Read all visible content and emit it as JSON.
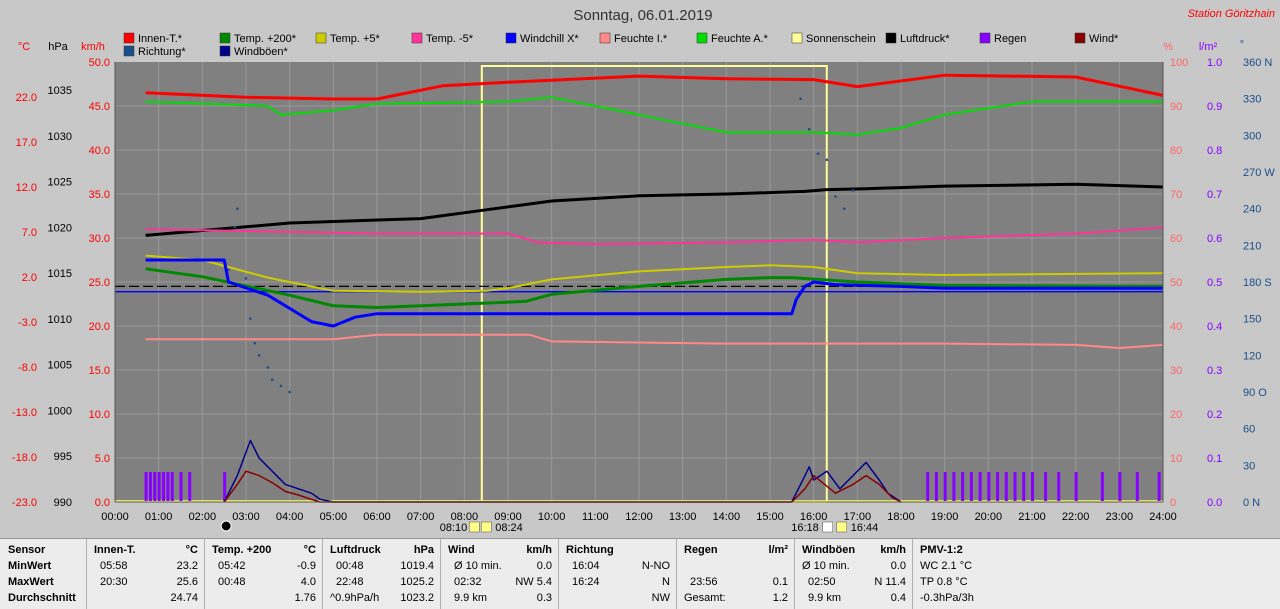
{
  "title": "Sonntag, 06.01.2019",
  "station": "Station Göritzhain",
  "legend": [
    {
      "label": "Innen-T.*",
      "color": "#ff0000"
    },
    {
      "label": "Temp. +200*",
      "color": "#008800"
    },
    {
      "label": "Temp. +5*",
      "color": "#cccc00"
    },
    {
      "label": "Temp. -5*",
      "color": "#ff3399"
    },
    {
      "label": "Windchill X*",
      "color": "#0000ff"
    },
    {
      "label": "Feuchte I.*",
      "color": "#ff8888"
    },
    {
      "label": "Feuchte A.*",
      "color": "#00dd00"
    },
    {
      "label": "Sonnenschein",
      "color": "#ffff99"
    },
    {
      "label": "Luftdruck*",
      "color": "#000000"
    },
    {
      "label": "Regen",
      "color": "#8800ff"
    },
    {
      "label": "Wind*",
      "color": "#880000"
    },
    {
      "label": "Richtung*",
      "color": "#1a4e8a"
    },
    {
      "label": "Windböen*",
      "color": "#000088"
    }
  ],
  "axis_units": {
    "degc": "°C",
    "hpa": "hPa",
    "kmh": "km/h",
    "pct": "%",
    "lm2": "l/m²",
    "deg": "°"
  },
  "chart_data": {
    "type": "line",
    "x_range": [
      0,
      24
    ],
    "x_tick_labels": [
      "00:00",
      "01:00",
      "02:00",
      "03:00",
      "04:00",
      "05:00",
      "06:00",
      "07:00",
      "08:00",
      "09:00",
      "10:00",
      "11:00",
      "12:00",
      "13:00",
      "14:00",
      "15:00",
      "16:00",
      "17:00",
      "18:00",
      "19:00",
      "20:00",
      "21:00",
      "22:00",
      "23:00",
      "24:00"
    ],
    "axes": {
      "temp": {
        "ticks": [
          "22.0",
          "17.0",
          "12.0",
          "7.0",
          "2.0",
          "-3.0",
          "-8.0",
          "-13.0",
          "-18.0",
          "-23.0"
        ],
        "range": [
          -23,
          27
        ]
      },
      "hpa": {
        "ticks": [
          "1035",
          "1030",
          "1025",
          "1020",
          "1015",
          "1010",
          "1005",
          "1000",
          "995",
          "990"
        ],
        "range": [
          990,
          1040
        ]
      },
      "kmh": {
        "ticks": [
          "50.0",
          "45.0",
          "40.0",
          "35.0",
          "30.0",
          "25.0",
          "20.0",
          "15.0",
          "10.0",
          "5.0",
          "0.0"
        ],
        "range": [
          0,
          50
        ]
      },
      "pct": {
        "ticks": [
          "100",
          "90",
          "80",
          "70",
          "60",
          "50",
          "40",
          "30",
          "20",
          "10",
          "0"
        ],
        "range": [
          0,
          100
        ]
      },
      "lm2": {
        "ticks": [
          "1.0",
          "0.9",
          "0.8",
          "0.7",
          "0.6",
          "0.5",
          "0.4",
          "0.3",
          "0.2",
          "0.1",
          "0.0"
        ],
        "range": [
          0,
          1
        ]
      },
      "dir": {
        "ticks": [
          "360 N",
          "330",
          "300",
          "270 W",
          "240",
          "210",
          "180 S",
          "150",
          "120",
          "90 O",
          "60",
          "30",
          "0 N"
        ],
        "range": [
          0,
          360
        ]
      }
    },
    "sun": {
      "rise": "08:10",
      "noon": "08:24",
      "set": "16:18",
      "set2": "16:44",
      "period": [
        8.4,
        16.3
      ]
    },
    "series": [
      {
        "name": "Innen-T.*",
        "axis": "temp",
        "color": "#ff0000",
        "width": 3,
        "points": [
          [
            0.7,
            23.5
          ],
          [
            3,
            23
          ],
          [
            5,
            22.8
          ],
          [
            6,
            22.8
          ],
          [
            7.5,
            24.3
          ],
          [
            9,
            24.7
          ],
          [
            12,
            25.4
          ],
          [
            14,
            25.1
          ],
          [
            16,
            25
          ],
          [
            17,
            24.2
          ],
          [
            19,
            25.5
          ],
          [
            22,
            25.3
          ],
          [
            24,
            23.2
          ]
        ]
      },
      {
        "name": "Feuchte A.*",
        "axis": "pct",
        "color": "#00dd00",
        "width": 2,
        "points": [
          [
            0.7,
            91
          ],
          [
            3.5,
            90
          ],
          [
            3.8,
            88
          ],
          [
            5,
            89
          ],
          [
            6,
            90.5
          ],
          [
            9,
            91
          ],
          [
            10,
            92
          ],
          [
            12,
            88
          ],
          [
            14,
            84
          ],
          [
            16,
            84
          ],
          [
            17,
            83.5
          ],
          [
            18,
            85
          ],
          [
            19,
            88
          ],
          [
            21,
            91
          ],
          [
            24,
            91
          ]
        ]
      },
      {
        "name": "Luftdruck*",
        "axis": "hpa",
        "color": "#000000",
        "width": 3,
        "points": [
          [
            0.7,
            1020.3
          ],
          [
            4,
            1021.7
          ],
          [
            7,
            1022.2
          ],
          [
            8.5,
            1023.2
          ],
          [
            10,
            1024.2
          ],
          [
            12,
            1024.8
          ],
          [
            14,
            1025
          ],
          [
            15.8,
            1025.3
          ],
          [
            16.3,
            1025.5
          ],
          [
            17.2,
            1025.6
          ],
          [
            19,
            1025.9
          ],
          [
            22,
            1026.1
          ],
          [
            24,
            1025.8
          ]
        ]
      },
      {
        "name": "Temp. -5*",
        "axis": "temp",
        "color": "#ff3399",
        "width": 2,
        "points": [
          [
            0.7,
            8
          ],
          [
            3,
            7.8
          ],
          [
            6,
            7.5
          ],
          [
            9,
            7.5
          ],
          [
            9.7,
            6.5
          ],
          [
            11,
            6.3
          ],
          [
            14,
            6.5
          ],
          [
            16,
            6.8
          ],
          [
            17,
            6.5
          ],
          [
            19,
            7
          ],
          [
            22,
            7.5
          ],
          [
            24,
            8.2
          ]
        ]
      },
      {
        "name": "Temp. +5*",
        "axis": "temp",
        "color": "#cccc00",
        "width": 2,
        "points": [
          [
            0.7,
            5
          ],
          [
            2,
            4.5
          ],
          [
            3.5,
            2.5
          ],
          [
            5,
            1
          ],
          [
            7,
            0.9
          ],
          [
            8.5,
            1
          ],
          [
            9,
            1.3
          ],
          [
            10,
            2.3
          ],
          [
            12,
            3.2
          ],
          [
            14,
            3.7
          ],
          [
            15,
            3.9
          ],
          [
            16,
            3.7
          ],
          [
            17,
            3
          ],
          [
            19,
            2.8
          ],
          [
            24,
            3
          ]
        ]
      },
      {
        "name": "Temp. +200*",
        "axis": "temp",
        "color": "#008800",
        "width": 3,
        "points": [
          [
            0.7,
            3.5
          ],
          [
            2,
            2.6
          ],
          [
            4,
            0.5
          ],
          [
            5,
            -0.7
          ],
          [
            6,
            -0.9
          ],
          [
            8,
            -0.5
          ],
          [
            9.4,
            -0.2
          ],
          [
            10,
            0.6
          ],
          [
            12,
            1.5
          ],
          [
            14,
            2.3
          ],
          [
            15,
            2.5
          ],
          [
            15.5,
            2.5
          ],
          [
            17,
            2
          ],
          [
            19,
            1.6
          ],
          [
            24,
            1.5
          ]
        ]
      },
      {
        "name": "Windchill X*",
        "axis": "temp",
        "color": "#0000ff",
        "width": 3,
        "points": [
          [
            0.7,
            4.5
          ],
          [
            2.5,
            4.5
          ],
          [
            2.6,
            2
          ],
          [
            3.5,
            0.5
          ],
          [
            4,
            -1
          ],
          [
            4.5,
            -2.5
          ],
          [
            5,
            -3
          ],
          [
            5.5,
            -2
          ],
          [
            6,
            -1.6
          ],
          [
            8,
            -1.6
          ],
          [
            10,
            -1.6
          ],
          [
            12,
            -1.6
          ],
          [
            14,
            -1.6
          ],
          [
            15.5,
            -1.6
          ],
          [
            15.6,
            0
          ],
          [
            15.8,
            1.5
          ],
          [
            16,
            2
          ],
          [
            16.5,
            1.7
          ],
          [
            18,
            1.5
          ],
          [
            19,
            1.3
          ],
          [
            24,
            1.3
          ]
        ]
      },
      {
        "name": "Feuchte I.*",
        "axis": "pct",
        "color": "#ff8888",
        "width": 2,
        "points": [
          [
            0.7,
            37
          ],
          [
            5,
            37
          ],
          [
            6,
            38
          ],
          [
            9.5,
            38
          ],
          [
            10,
            36.5
          ],
          [
            14,
            36
          ],
          [
            19,
            36
          ],
          [
            22,
            35.7
          ],
          [
            23,
            35
          ],
          [
            24,
            35.7
          ]
        ]
      },
      {
        "name": "Windböen*",
        "axis": "kmh",
        "color": "#000088",
        "width": 1.5,
        "points": [
          [
            2.5,
            0
          ],
          [
            2.8,
            3
          ],
          [
            3.1,
            7
          ],
          [
            3.3,
            5
          ],
          [
            3.6,
            3.5
          ],
          [
            3.9,
            2
          ],
          [
            4.2,
            1.5
          ],
          [
            4.5,
            1
          ],
          [
            4.7,
            0.3
          ],
          [
            5,
            0
          ],
          [
            15.5,
            0
          ],
          [
            15.7,
            2
          ],
          [
            15.9,
            4
          ],
          [
            16,
            2.5
          ],
          [
            16.3,
            3.5
          ],
          [
            16.6,
            1.5
          ],
          [
            16.9,
            3
          ],
          [
            17.2,
            4.5
          ],
          [
            17.5,
            2.5
          ],
          [
            17.7,
            1
          ],
          [
            18,
            0
          ]
        ]
      },
      {
        "name": "Wind*",
        "axis": "kmh",
        "color": "#880000",
        "width": 1.5,
        "points": [
          [
            2.5,
            0
          ],
          [
            2.8,
            2
          ],
          [
            3,
            3.5
          ],
          [
            3.3,
            3
          ],
          [
            3.6,
            2.2
          ],
          [
            3.9,
            1.2
          ],
          [
            4.2,
            0.8
          ],
          [
            4.5,
            0.3
          ],
          [
            4.7,
            0
          ],
          [
            15.5,
            0
          ],
          [
            15.8,
            1.5
          ],
          [
            16,
            3
          ],
          [
            16.2,
            2.2
          ],
          [
            16.5,
            1
          ],
          [
            16.9,
            2
          ],
          [
            17.2,
            3
          ],
          [
            17.5,
            2
          ],
          [
            17.8,
            0.5
          ],
          [
            18,
            0
          ]
        ]
      }
    ],
    "baselines": [
      {
        "name": "Windchill ref",
        "axis": "temp",
        "color": "#0000ff",
        "value": 0.9
      },
      {
        "name": "Dash ref",
        "axis": "temp",
        "color": "#000000",
        "value": 1.5,
        "dashed": true
      }
    ],
    "richtung_points": [
      [
        2.6,
        190
      ],
      [
        2.75,
        225
      ],
      [
        2.8,
        240
      ],
      [
        3,
        183
      ],
      [
        3.1,
        150
      ],
      [
        3.2,
        130
      ],
      [
        3.3,
        120
      ],
      [
        3.5,
        110
      ],
      [
        3.6,
        100
      ],
      [
        3.8,
        95
      ],
      [
        4,
        90
      ],
      [
        15.7,
        330
      ],
      [
        15.9,
        305
      ],
      [
        16.1,
        285
      ],
      [
        16.3,
        280
      ],
      [
        16.5,
        250
      ],
      [
        16.7,
        240
      ],
      [
        16.9,
        255
      ]
    ],
    "regen_bars": [
      0.7,
      0.8,
      0.9,
      1.0,
      1.1,
      1.2,
      1.3,
      1.5,
      1.7,
      2.5,
      18.6,
      18.8,
      19.0,
      19.2,
      19.4,
      19.6,
      19.8,
      20.0,
      20.2,
      20.4,
      20.6,
      20.8,
      21.0,
      21.3,
      21.6,
      22.0,
      22.6,
      23.0,
      23.4,
      23.9
    ]
  },
  "stats": {
    "sensor": {
      "header": "Sensor",
      "min": "MinWert",
      "max": "MaxWert",
      "avg": "Durchschnitt"
    },
    "innen": {
      "header": "Innen-T.",
      "unit": "°C",
      "min_t": "05:58",
      "min_v": "23.2",
      "max_t": "20:30",
      "max_v": "25.6",
      "avg_v": "24.74"
    },
    "temp200": {
      "header": "Temp. +200",
      "unit": "°C",
      "min_t": "05:42",
      "min_v": "-0.9",
      "max_t": "00:48",
      "max_v": "4.0",
      "avg_v": "1.76"
    },
    "luftdruck": {
      "header": "Luftdruck",
      "unit": "hPa",
      "min_t": "00:48",
      "min_v": "1019.4",
      "max_t": "22:48",
      "max_v": "1025.2",
      "avg_t": "^0.9hPa/h",
      "avg_v": "1023.2"
    },
    "wind": {
      "header": "Wind",
      "unit": "km/h",
      "min_t": "Ø 10 min.",
      "min_v": "0.0",
      "max_t": "02:32",
      "max_v": "NW 5.4",
      "avg_t": "9.9 km",
      "avg_v": "0.3"
    },
    "richtung": {
      "header": "Richtung",
      "min_t": "16:04",
      "min_v": "N-NO",
      "max_t": "16:24",
      "max_v": "N",
      "avg_v": "NW"
    },
    "regen": {
      "header": "Regen",
      "unit": "l/m²",
      "max_t": "23:56",
      "max_v": "0.1",
      "avg_t": "Gesamt:",
      "avg_v": "1.2"
    },
    "boen": {
      "header": "Windböen",
      "unit": "km/h",
      "min_t": "Ø 10 min.",
      "min_v": "0.0",
      "max_t": "02:50",
      "max_v": "N 11.4",
      "avg_t": "9.9 km",
      "avg_v": "0.4"
    },
    "pmv": {
      "header": "PMV-1:2",
      "min_v": "WC 2.1 °C",
      "max_v": "TP 0.8 °C",
      "avg_v": "-0.3hPa/3h"
    }
  }
}
